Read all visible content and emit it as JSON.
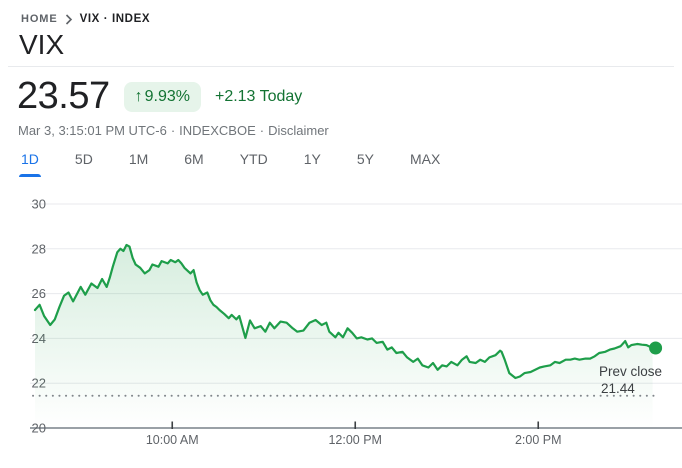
{
  "breadcrumb": {
    "home": "HOME",
    "current": "VIX · INDEX"
  },
  "title": "VIX",
  "quote": {
    "price": "23.57",
    "arrow": "↑",
    "percent_change": "9.93%",
    "abs_change": "+2.13 Today",
    "timestamp": "Mar 3, 3:15:01 PM UTC-6",
    "exchange": "INDEXCBOE",
    "disclaimer": "Disclaimer",
    "separator": "·"
  },
  "tabs": {
    "items": [
      "1D",
      "5D",
      "1M",
      "6M",
      "YTD",
      "1Y",
      "5Y",
      "MAX"
    ],
    "active_index": 0
  },
  "theme": {
    "accent_blue": "#1a73e8",
    "text_dark": "#202124",
    "text_gray": "#5f6368",
    "green_text": "#137333",
    "green_line": "#1e9e4a",
    "badge_bg": "#e6f4ea",
    "gridline": "#e8eaed",
    "axis_line": "#9aa0a6",
    "tick_mark": "#3c4043",
    "annotation_text": "#3c4043",
    "dotted_line": "#80868b"
  },
  "chart_data": {
    "type": "area",
    "title": "VIX 1D intraday",
    "xlabel": "",
    "ylabel": "",
    "session_start": "8:30 AM",
    "session_end": "3:15 PM",
    "session_minutes": 405,
    "ylim": [
      20,
      30
    ],
    "grid": true,
    "y_ticks": [
      20,
      22,
      24,
      26,
      28,
      30
    ],
    "x_ticks": [
      {
        "label": "10:00 AM",
        "minutes": 90
      },
      {
        "label": "12:00 PM",
        "minutes": 210
      },
      {
        "label": "2:00 PM",
        "minutes": 330
      }
    ],
    "prev_close": {
      "label": "Prev close",
      "value": "21.44",
      "y": 21.44
    },
    "last_point": {
      "minutes": 405,
      "value": 23.57
    },
    "points": [
      [
        0,
        25.27
      ],
      [
        3,
        25.5
      ],
      [
        6,
        25.0
      ],
      [
        10,
        24.6
      ],
      [
        13,
        24.85
      ],
      [
        16,
        25.4
      ],
      [
        19,
        25.9
      ],
      [
        22,
        26.05
      ],
      [
        25,
        25.65
      ],
      [
        30,
        26.3
      ],
      [
        33,
        25.95
      ],
      [
        37,
        26.45
      ],
      [
        41,
        26.25
      ],
      [
        44,
        26.65
      ],
      [
        47,
        26.3
      ],
      [
        49,
        26.7
      ],
      [
        51,
        27.2
      ],
      [
        54,
        27.85
      ],
      [
        56,
        28.0
      ],
      [
        58,
        27.9
      ],
      [
        60,
        28.17
      ],
      [
        62,
        28.1
      ],
      [
        64,
        27.6
      ],
      [
        66,
        27.3
      ],
      [
        69,
        27.15
      ],
      [
        72,
        26.9
      ],
      [
        75,
        27.05
      ],
      [
        77,
        27.3
      ],
      [
        81,
        27.2
      ],
      [
        83,
        27.45
      ],
      [
        87,
        27.35
      ],
      [
        89,
        27.5
      ],
      [
        92,
        27.4
      ],
      [
        94,
        27.5
      ],
      [
        96,
        27.35
      ],
      [
        98,
        27.15
      ],
      [
        102,
        26.9
      ],
      [
        104,
        27.05
      ],
      [
        106,
        26.5
      ],
      [
        108,
        26.15
      ],
      [
        110,
        25.95
      ],
      [
        113,
        26.05
      ],
      [
        115,
        25.7
      ],
      [
        117,
        25.5
      ],
      [
        119,
        25.4
      ],
      [
        121,
        25.27
      ],
      [
        124,
        25.1
      ],
      [
        127,
        24.9
      ],
      [
        129,
        25.05
      ],
      [
        132,
        24.85
      ],
      [
        134,
        25.0
      ],
      [
        136,
        24.5
      ],
      [
        138,
        24.02
      ],
      [
        141,
        24.8
      ],
      [
        144,
        24.45
      ],
      [
        148,
        24.55
      ],
      [
        151,
        24.3
      ],
      [
        154,
        24.7
      ],
      [
        157,
        24.45
      ],
      [
        161,
        24.75
      ],
      [
        165,
        24.7
      ],
      [
        169,
        24.45
      ],
      [
        172,
        24.3
      ],
      [
        176,
        24.35
      ],
      [
        180,
        24.7
      ],
      [
        184,
        24.82
      ],
      [
        188,
        24.6
      ],
      [
        191,
        24.7
      ],
      [
        193,
        24.3
      ],
      [
        197,
        24.05
      ],
      [
        199,
        24.25
      ],
      [
        202,
        24.05
      ],
      [
        205,
        24.45
      ],
      [
        208,
        24.25
      ],
      [
        211,
        24.0
      ],
      [
        214,
        24.05
      ],
      [
        218,
        23.95
      ],
      [
        221,
        24.0
      ],
      [
        224,
        23.8
      ],
      [
        228,
        23.85
      ],
      [
        231,
        23.5
      ],
      [
        234,
        23.6
      ],
      [
        237,
        23.35
      ],
      [
        241,
        23.4
      ],
      [
        244,
        23.15
      ],
      [
        248,
        22.95
      ],
      [
        251,
        23.1
      ],
      [
        254,
        22.8
      ],
      [
        258,
        22.7
      ],
      [
        261,
        22.9
      ],
      [
        264,
        22.6
      ],
      [
        267,
        22.8
      ],
      [
        270,
        22.75
      ],
      [
        273,
        22.95
      ],
      [
        277,
        22.8
      ],
      [
        280,
        23.05
      ],
      [
        283,
        23.2
      ],
      [
        285,
        22.95
      ],
      [
        289,
        22.9
      ],
      [
        292,
        23.05
      ],
      [
        295,
        22.95
      ],
      [
        298,
        23.15
      ],
      [
        302,
        23.25
      ],
      [
        305,
        23.45
      ],
      [
        306,
        23.4
      ],
      [
        308,
        23.05
      ],
      [
        311,
        22.45
      ],
      [
        315,
        22.23
      ],
      [
        318,
        22.3
      ],
      [
        321,
        22.45
      ],
      [
        325,
        22.5
      ],
      [
        328,
        22.6
      ],
      [
        331,
        22.7
      ],
      [
        334,
        22.75
      ],
      [
        338,
        22.8
      ],
      [
        341,
        22.95
      ],
      [
        344,
        22.9
      ],
      [
        348,
        23.05
      ],
      [
        351,
        23.05
      ],
      [
        354,
        23.1
      ],
      [
        357,
        23.05
      ],
      [
        361,
        23.1
      ],
      [
        364,
        23.1
      ],
      [
        367,
        23.2
      ],
      [
        370,
        23.35
      ],
      [
        374,
        23.4
      ],
      [
        377,
        23.5
      ],
      [
        380,
        23.55
      ],
      [
        384,
        23.65
      ],
      [
        387,
        23.88
      ],
      [
        389,
        23.6
      ],
      [
        391,
        23.7
      ],
      [
        395,
        23.75
      ],
      [
        398,
        23.72
      ],
      [
        401,
        23.7
      ],
      [
        405,
        23.57
      ]
    ]
  }
}
